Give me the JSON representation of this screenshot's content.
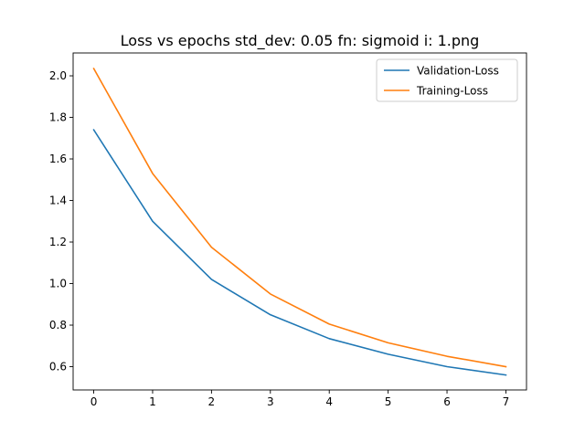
{
  "chart_data": {
    "type": "line",
    "title": "Loss vs epochs std_dev: 0.05 fn: sigmoid i: 1.png",
    "xlabel": "",
    "ylabel": "",
    "x": [
      0,
      1,
      2,
      3,
      4,
      5,
      6,
      7
    ],
    "xlim": [
      -0.35,
      7.35
    ],
    "ylim": [
      0.488,
      2.11
    ],
    "xticks": [
      0,
      1,
      2,
      3,
      4,
      5,
      6,
      7
    ],
    "yticks": [
      0.6,
      0.8,
      1.0,
      1.2,
      1.4,
      1.6,
      1.8,
      2.0
    ],
    "ytick_labels": [
      "0.6",
      "0.8",
      "1.0",
      "1.2",
      "1.4",
      "1.6",
      "1.8",
      "2.0"
    ],
    "grid": false,
    "legend_position": "top-right",
    "series": [
      {
        "name": "Validation-Loss",
        "color": "#1f77b4",
        "values": [
          1.74,
          1.3,
          1.02,
          0.85,
          0.735,
          0.66,
          0.6,
          0.56
        ]
      },
      {
        "name": "Training-Loss",
        "color": "#ff7f0e",
        "values": [
          2.035,
          1.53,
          1.175,
          0.95,
          0.805,
          0.715,
          0.65,
          0.6
        ]
      }
    ]
  }
}
